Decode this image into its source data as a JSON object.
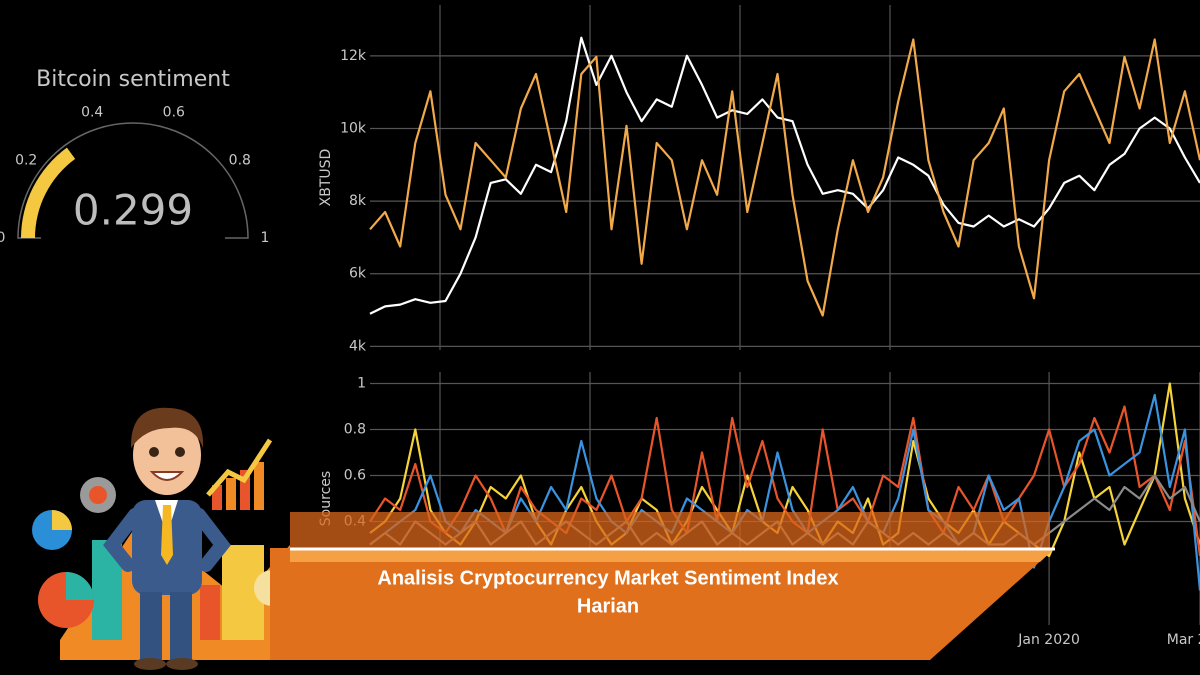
{
  "gauge": {
    "title": "Bitcoin sentiment",
    "value": 0.299,
    "ticks": [
      0,
      0.2,
      0.4,
      0.6,
      0.8,
      1
    ],
    "color": "#f5c842"
  },
  "chart_data": [
    {
      "type": "line",
      "y_label": "XBTUSD",
      "ylim": [
        3900,
        13400
      ],
      "yticks": [
        {
          "value": 4000,
          "label": "4k"
        },
        {
          "value": 6000,
          "label": "6k"
        },
        {
          "value": 8000,
          "label": "8k"
        },
        {
          "value": 10000,
          "label": "10k"
        },
        {
          "value": 12000,
          "label": "12k"
        }
      ],
      "y2lim": [
        0,
        1
      ],
      "grid": true,
      "series": [
        {
          "color": "#ffffff",
          "values": [
            4900,
            5100,
            5150,
            5300,
            5200,
            5250,
            6000,
            7000,
            8500,
            8600,
            8200,
            9000,
            8800,
            10200,
            12500,
            11200,
            12000,
            11000,
            10200,
            10800,
            10600,
            12000,
            11200,
            10300,
            10500,
            10400,
            10800,
            10300,
            10200,
            9000,
            8200,
            8300,
            8200,
            7800,
            8300,
            9200,
            9000,
            8700,
            7900,
            7400,
            7300,
            7600,
            7300,
            7500,
            7300,
            7800,
            8500,
            8700,
            8300,
            9000,
            9300,
            10000,
            10300,
            10000,
            9200,
            8500
          ]
        },
        {
          "color": "#f2a94a",
          "axis": "y2",
          "values": [
            0.35,
            0.4,
            0.3,
            0.6,
            0.75,
            0.45,
            0.35,
            0.6,
            0.55,
            0.5,
            0.7,
            0.8,
            0.6,
            0.4,
            0.8,
            0.85,
            0.35,
            0.65,
            0.25,
            0.6,
            0.55,
            0.35,
            0.55,
            0.45,
            0.75,
            0.4,
            0.6,
            0.8,
            0.45,
            0.2,
            0.1,
            0.35,
            0.55,
            0.4,
            0.5,
            0.72,
            0.9,
            0.55,
            0.4,
            0.3,
            0.55,
            0.6,
            0.7,
            0.3,
            0.15,
            0.55,
            0.75,
            0.8,
            0.7,
            0.6,
            0.85,
            0.7,
            0.9,
            0.6,
            0.75,
            0.55
          ]
        }
      ]
    },
    {
      "type": "line",
      "y_label": "Sources",
      "categories": [
        null,
        null,
        null,
        null,
        null,
        null,
        null,
        null,
        null,
        null,
        null,
        null,
        null,
        null,
        null,
        null,
        null,
        null,
        null,
        null,
        null,
        null,
        null,
        null,
        null,
        null,
        null,
        null,
        null,
        null,
        null,
        null,
        null,
        null,
        null,
        null,
        null,
        null,
        null,
        null,
        null,
        null,
        null,
        null,
        null,
        "Jan 2020",
        null,
        null,
        null,
        null,
        null,
        null,
        null,
        null,
        null,
        "Mar 2020"
      ],
      "ylim": [
        -0.05,
        1.05
      ],
      "yticks": [
        0.4,
        0.6,
        0.8,
        1
      ],
      "grid": true,
      "series": [
        {
          "color": "#f5d33a",
          "values": [
            0.35,
            0.4,
            0.5,
            0.8,
            0.45,
            0.35,
            0.3,
            0.4,
            0.55,
            0.5,
            0.6,
            0.4,
            0.3,
            0.45,
            0.55,
            0.4,
            0.3,
            0.35,
            0.5,
            0.45,
            0.3,
            0.4,
            0.55,
            0.45,
            0.35,
            0.6,
            0.4,
            0.35,
            0.55,
            0.45,
            0.3,
            0.4,
            0.35,
            0.5,
            0.3,
            0.35,
            0.75,
            0.5,
            0.4,
            0.35,
            0.45,
            0.3,
            0.4,
            0.35,
            0.3,
            0.25,
            0.4,
            0.7,
            0.5,
            0.55,
            0.3,
            0.45,
            0.6,
            1,
            0.5,
            0.3
          ]
        },
        {
          "color": "#e8552a",
          "values": [
            0.4,
            0.5,
            0.45,
            0.65,
            0.4,
            0.35,
            0.45,
            0.6,
            0.5,
            0.35,
            0.55,
            0.45,
            0.4,
            0.35,
            0.5,
            0.45,
            0.6,
            0.4,
            0.5,
            0.85,
            0.45,
            0.35,
            0.7,
            0.4,
            0.85,
            0.55,
            0.75,
            0.5,
            0.4,
            0.35,
            0.8,
            0.45,
            0.5,
            0.4,
            0.6,
            0.55,
            0.85,
            0.45,
            0.35,
            0.55,
            0.45,
            0.6,
            0.4,
            0.5,
            0.6,
            0.8,
            0.55,
            0.65,
            0.85,
            0.7,
            0.9,
            0.55,
            0.6,
            0.45,
            0.75,
            0.25
          ]
        },
        {
          "color": "#3a93e0",
          "values": [
            0.3,
            0.35,
            0.4,
            0.45,
            0.6,
            0.4,
            0.35,
            0.45,
            0.4,
            0.35,
            0.5,
            0.4,
            0.55,
            0.45,
            0.75,
            0.5,
            0.4,
            0.35,
            0.45,
            0.4,
            0.35,
            0.5,
            0.45,
            0.4,
            0.35,
            0.45,
            0.4,
            0.7,
            0.45,
            0.35,
            0.4,
            0.45,
            0.55,
            0.4,
            0.35,
            0.5,
            0.8,
            0.45,
            0.4,
            0.3,
            0.35,
            0.6,
            0.45,
            0.5,
            0.2,
            0.4,
            0.55,
            0.75,
            0.8,
            0.6,
            0.65,
            0.7,
            0.95,
            0.55,
            0.8,
            0.1
          ]
        },
        {
          "color": "#8a8a8a",
          "values": [
            0.3,
            0.35,
            0.3,
            0.4,
            0.35,
            0.3,
            0.35,
            0.4,
            0.3,
            0.35,
            0.4,
            0.3,
            0.35,
            0.4,
            0.35,
            0.3,
            0.35,
            0.4,
            0.3,
            0.35,
            0.3,
            0.35,
            0.4,
            0.3,
            0.35,
            0.3,
            0.35,
            0.4,
            0.3,
            0.35,
            0.3,
            0.35,
            0.3,
            0.4,
            0.35,
            0.3,
            0.35,
            0.3,
            0.35,
            0.3,
            0.35,
            0.3,
            0.3,
            0.35,
            0.3,
            0.35,
            0.4,
            0.45,
            0.5,
            0.45,
            0.55,
            0.5,
            0.6,
            0.5,
            0.55,
            0.4
          ]
        }
      ]
    }
  ],
  "banner": {
    "title_line1": "Analisis Cryptocurrency Market Sentiment Index",
    "title_line2": "Harian"
  }
}
